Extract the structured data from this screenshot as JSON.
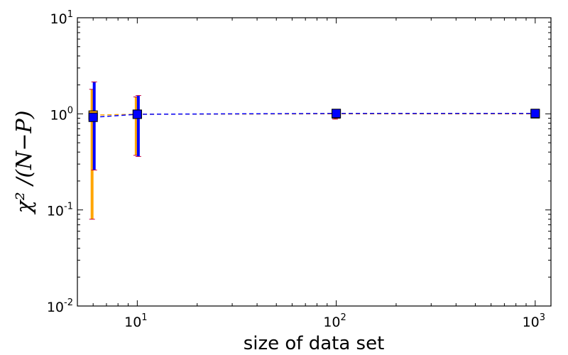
{
  "chart_data": {
    "type": "scatter",
    "xscale": "log",
    "yscale": "log",
    "xlim": [
      5,
      1200
    ],
    "ylim": [
      0.01,
      10
    ],
    "xlabel": "size of data set",
    "ylabel": "χ² /(N−P)",
    "x_ticks": [
      {
        "value": 10,
        "base": "10",
        "exp": "1"
      },
      {
        "value": 100,
        "base": "10",
        "exp": "2"
      },
      {
        "value": 1000,
        "base": "10",
        "exp": "3"
      }
    ],
    "y_ticks": [
      {
        "value": 0.01,
        "base": "10",
        "exp": "-2"
      },
      {
        "value": 0.1,
        "base": "10",
        "exp": "-1"
      },
      {
        "value": 1,
        "base": "10",
        "exp": "0"
      },
      {
        "value": 10,
        "base": "10",
        "exp": "1"
      }
    ],
    "grid": false,
    "series": [
      {
        "color": "#ffa500",
        "marker": "square",
        "line": "dashed",
        "points": [
          {
            "x": 6,
            "y": 0.97,
            "ylow": 0.08,
            "yhigh": 1.8
          },
          {
            "x": 10,
            "y": 0.99,
            "ylow": 0.37,
            "yhigh": 1.5
          },
          {
            "x": 100,
            "y": 1.0,
            "ylow": 0.88,
            "yhigh": 1.08
          },
          {
            "x": 1000,
            "y": 1.0,
            "ylow": 0.97,
            "yhigh": 1.03
          }
        ]
      },
      {
        "color": "#0000ff",
        "marker": "square",
        "line": "dashed",
        "points": [
          {
            "x": 6,
            "y": 0.92,
            "ylow": 0.26,
            "yhigh": 2.15
          },
          {
            "x": 10,
            "y": 0.99,
            "ylow": 0.36,
            "yhigh": 1.55
          },
          {
            "x": 100,
            "y": 1.01,
            "ylow": 0.9,
            "yhigh": 1.1
          },
          {
            "x": 1000,
            "y": 1.01,
            "ylow": 0.98,
            "yhigh": 1.03
          }
        ]
      }
    ]
  }
}
